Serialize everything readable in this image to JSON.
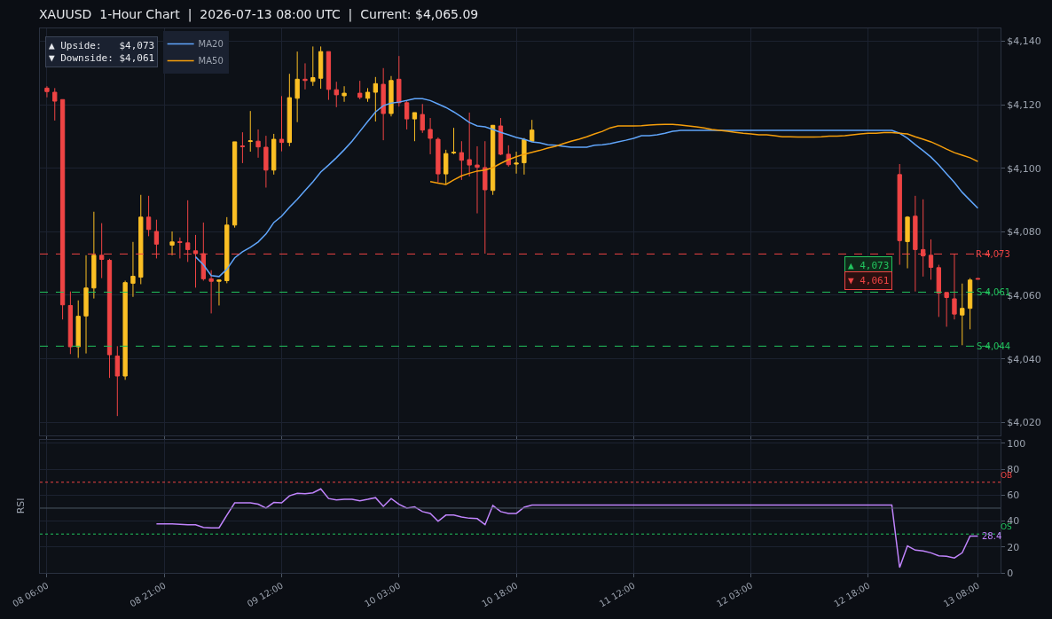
{
  "chart_data": [
    {
      "type": "candlestick",
      "title": "XAUUSD  1-Hour Chart  |  2026-07-13 08:00 UTC  |  Current: $4,065.09",
      "categories": [
        null,
        null,
        null,
        null,
        null,
        null,
        null,
        null,
        null,
        null,
        null,
        null,
        null,
        null,
        null,
        null,
        null,
        null,
        null,
        null,
        null,
        null,
        null,
        null,
        null,
        null,
        null,
        null,
        null,
        null,
        null,
        null,
        null,
        null,
        null,
        null,
        null,
        null,
        null,
        null,
        null,
        null,
        null,
        null,
        null,
        null,
        null,
        null,
        null,
        null,
        null,
        null,
        null,
        null,
        null,
        null,
        null,
        null,
        null,
        null,
        null,
        null,
        null,
        null,
        null,
        null,
        null,
        null,
        null,
        null,
        null,
        null,
        null,
        null,
        null,
        null,
        null,
        null,
        null,
        null,
        null,
        null,
        null,
        null,
        null,
        null,
        null,
        null,
        null,
        null,
        null,
        null,
        null,
        null,
        null,
        null,
        null,
        null,
        null,
        null,
        null,
        null,
        null,
        null,
        null,
        null,
        null,
        null,
        null,
        null,
        null,
        null,
        null,
        null,
        null,
        null,
        null,
        null,
        null,
        null
      ],
      "ohlc": [
        [
          4125.2,
          4125.8,
          4122.3,
          4124.1
        ],
        [
          4123.9,
          4125.2,
          4115.0,
          4121.1
        ],
        [
          4121.6,
          4121.6,
          4052.4,
          4057.0
        ],
        [
          4056.8,
          4061.2,
          4041.5,
          4043.8
        ],
        [
          4043.8,
          4058.4,
          4040.3,
          4053.4
        ],
        [
          4053.5,
          4072.6,
          4041.7,
          4062.3
        ],
        [
          4062.3,
          4086.3,
          4059.0,
          4072.6
        ],
        [
          4072.6,
          4082.7,
          4065.4,
          4071.3
        ],
        [
          4071.0,
          4071.5,
          4034.0,
          4041.3
        ],
        [
          4040.9,
          4044.0,
          4022.0,
          4034.6
        ],
        [
          4034.6,
          4064.6,
          4033.4,
          4064.0
        ],
        [
          4063.8,
          4076.8,
          4059.5,
          4066.0
        ],
        [
          4065.7,
          4091.6,
          4063.5,
          4084.6
        ],
        [
          4084.6,
          4091.3,
          4078.6,
          4080.7
        ],
        [
          4080.1,
          4083.8,
          4071.6,
          4076.1
        ],
        null,
        [
          4075.8,
          4080.1,
          4072.6,
          4076.8
        ],
        [
          4076.9,
          4078.2,
          4071.6,
          4076.6
        ],
        [
          4076.5,
          4089.9,
          4070.5,
          4074.4
        ],
        [
          4074.0,
          4079.0,
          4062.4,
          4073.1
        ],
        [
          4073.1,
          4082.9,
          4064.6,
          4065.2
        ],
        [
          4065.2,
          4067.9,
          4054.3,
          4064.4
        ],
        [
          4064.4,
          4065.0,
          4056.8,
          4064.8
        ],
        [
          4064.6,
          4084.6,
          4063.8,
          4082.1
        ],
        [
          4082.1,
          4108.3,
          4081.3,
          4108.3
        ],
        [
          4107.0,
          4111.3,
          4101.6,
          4106.8
        ],
        [
          4108.4,
          4118.0,
          4105.2,
          4108.6
        ],
        [
          4108.5,
          4112.2,
          4103.3,
          4106.7
        ],
        [
          4106.6,
          4110.2,
          4093.9,
          4099.4
        ],
        [
          4099.4,
          4110.8,
          4098.0,
          4109.1
        ],
        [
          4109.1,
          4122.7,
          4105.3,
          4108.1
        ],
        [
          4108.1,
          4129.7,
          4106.9,
          4122.2
        ],
        [
          4122.0,
          4136.7,
          4114.5,
          4128.0
        ],
        [
          4128.0,
          4133.0,
          4124.8,
          4127.6
        ],
        [
          4127.3,
          4138.3,
          4125.9,
          4128.5
        ],
        [
          4128.3,
          4138.3,
          4125.0,
          4136.7
        ],
        [
          4136.7,
          4136.7,
          4121.5,
          4124.8
        ],
        [
          4124.7,
          4127.2,
          4119.2,
          4123.1
        ],
        [
          4122.8,
          4125.8,
          4120.9,
          4123.6
        ],
        null,
        [
          4123.6,
          4127.5,
          4121.7,
          4122.3
        ],
        [
          4122.0,
          4125.2,
          4120.9,
          4123.9
        ],
        [
          4123.9,
          4128.7,
          4114.7,
          4126.6
        ],
        [
          4126.4,
          4131.5,
          4108.8,
          4117.2
        ],
        [
          4117.2,
          4129.0,
          4116.3,
          4127.6
        ],
        [
          4128.0,
          4135.3,
          4119.4,
          4120.6
        ],
        [
          4120.6,
          4121.3,
          4112.2,
          4115.5
        ],
        [
          4115.5,
          4117.5,
          4108.5,
          4117.5
        ],
        [
          4116.9,
          4120.2,
          4111.1,
          4112.0
        ],
        [
          4112.2,
          4115.8,
          4104.4,
          4109.4
        ],
        [
          4109.1,
          4109.7,
          4095.5,
          4098.2
        ],
        [
          4098.2,
          4105.8,
          4094.8,
          4104.6
        ],
        [
          4104.8,
          4112.7,
          4104.4,
          4105.0
        ],
        [
          4104.9,
          4108.5,
          4096.3,
          4102.5
        ],
        [
          4102.7,
          4117.5,
          4097.4,
          4101.0
        ],
        [
          4101.0,
          4106.9,
          4085.8,
          4100.3
        ],
        [
          4100.2,
          4108.5,
          4073.1,
          4093.2
        ],
        [
          4093.0,
          4113.6,
          4091.6,
          4113.5
        ],
        [
          4113.3,
          4115.8,
          4104.1,
          4104.4
        ],
        [
          4104.4,
          4107.2,
          4100.5,
          4101.1
        ],
        [
          4101.3,
          4105.2,
          4098.3,
          4101.6
        ],
        [
          4101.7,
          4109.5,
          4098.0,
          4109.0
        ],
        [
          4108.5,
          4115.2,
          4108.5,
          4112.0
        ],
        null,
        null,
        null,
        null,
        null,
        null,
        null,
        null,
        null,
        null,
        null,
        null,
        null,
        null,
        null,
        null,
        null,
        null,
        null,
        null,
        null,
        null,
        null,
        null,
        null,
        null,
        null,
        null,
        null,
        null,
        null,
        null,
        null,
        null,
        null,
        null,
        null,
        null,
        null,
        null,
        null,
        null,
        null,
        null,
        null,
        null,
        [
          4098.0,
          4101.3,
          4069.6,
          4077.2
        ],
        [
          4076.9,
          4084.9,
          4068.5,
          4084.6
        ],
        [
          4084.9,
          4091.3,
          4061.2,
          4074.4
        ],
        [
          4074.4,
          4090.2,
          4065.9,
          4072.4
        ],
        [
          4072.6,
          4077.6,
          4064.9,
          4068.8
        ],
        [
          4068.7,
          4069.6,
          4053.2,
          4060.7
        ],
        [
          4060.9,
          4060.9,
          4050.1,
          4059.3
        ],
        [
          4058.9,
          4073.1,
          4052.4,
          4054.1
        ],
        [
          4053.8,
          4063.7,
          4044.3,
          4055.9
        ],
        [
          4055.9,
          4065.4,
          4049.3,
          4064.8
        ],
        [
          4065.3,
          4065.4,
          4065.0,
          4065.1
        ]
      ],
      "colors": [
        "#ef4444",
        "#ef4444",
        "#ef4444",
        "#ef4444",
        "#fbbf24",
        "#fbbf24",
        "#fbbf24",
        "#ef4444",
        "#ef4444",
        "#ef4444",
        "#fbbf24",
        "#fbbf24",
        "#fbbf24",
        "#ef4444",
        "#ef4444",
        null,
        "#fbbf24",
        "#ef4444",
        "#ef4444",
        "#ef4444",
        "#ef4444",
        "#ef4444",
        "#fbbf24",
        "#fbbf24",
        "#fbbf24",
        "#ef4444",
        "#fbbf24",
        "#ef4444",
        "#ef4444",
        "#fbbf24",
        "#ef4444",
        "#fbbf24",
        "#fbbf24",
        "#ef4444",
        "#fbbf24",
        "#fbbf24",
        "#ef4444",
        "#ef4444",
        "#fbbf24",
        null,
        "#ef4444",
        "#fbbf24",
        "#fbbf24",
        "#ef4444",
        "#fbbf24",
        "#ef4444",
        "#ef4444",
        "#fbbf24",
        "#ef4444",
        "#ef4444",
        "#ef4444",
        "#fbbf24",
        "#fbbf24",
        "#ef4444",
        "#ef4444",
        "#ef4444",
        "#ef4444",
        "#fbbf24",
        "#ef4444",
        "#ef4444",
        "#fbbf24",
        "#fbbf24",
        "#fbbf24",
        null,
        null,
        null,
        null,
        null,
        null,
        null,
        null,
        null,
        null,
        null,
        null,
        null,
        null,
        null,
        null,
        null,
        null,
        null,
        null,
        null,
        null,
        null,
        null,
        null,
        null,
        null,
        null,
        null,
        null,
        null,
        null,
        null,
        null,
        null,
        null,
        null,
        null,
        null,
        null,
        null,
        null,
        null,
        null,
        null,
        null,
        "#ef4444",
        "#fbbf24",
        "#ef4444",
        "#ef4444",
        "#ef4444",
        "#ef4444",
        "#ef4444",
        "#ef4444",
        "#fbbf24",
        "#fbbf24",
        "#ef4444"
      ],
      "series": [
        {
          "type": "line",
          "name": "MA20",
          "color": "#60a5fa",
          "values": [
            null,
            null,
            null,
            null,
            null,
            null,
            null,
            null,
            null,
            null,
            null,
            null,
            null,
            null,
            null,
            null,
            null,
            null,
            null,
            4072.1,
            4069.6,
            4066.2,
            4065.9,
            4068.2,
            4071.8,
            4073.7,
            4075.1,
            4076.8,
            4079.3,
            4082.9,
            4084.9,
            4087.7,
            4090.2,
            4093.0,
            4095.7,
            4098.8,
            4101.0,
            4103.3,
            4105.8,
            4108.5,
            4111.6,
            4114.7,
            4117.7,
            4119.7,
            4120.5,
            4120.8,
            4121.3,
            4121.9,
            4121.9,
            4121.3,
            4120.2,
            4119.1,
            4117.7,
            4116.1,
            4114.4,
            4113.3,
            4113.0,
            4112.2,
            4111.3,
            4110.5,
            4109.7,
            4109.1,
            4108.3,
            4108.0,
            4107.4,
            4107.2,
            4106.9,
            4106.6,
            4106.6,
            4106.6,
            4107.2,
            4107.4,
            4107.7,
            4108.3,
            4108.8,
            4109.4,
            4110.2,
            4110.2,
            4110.5,
            4111.0,
            4111.6,
            4111.9,
            4111.9,
            4111.9,
            4111.9,
            4111.9,
            4111.9,
            4111.9,
            4111.9,
            4111.9,
            4111.9,
            4111.9,
            4111.9,
            4111.9,
            4111.9,
            4111.9,
            4111.9,
            4111.9,
            4111.9,
            4111.9,
            4111.9,
            4111.9,
            4111.9,
            4111.9,
            4111.9,
            4111.9,
            4111.9,
            4111.9,
            4111.9,
            4111.0,
            4109.4,
            4107.4,
            4105.5,
            4103.5,
            4101.0,
            4098.2,
            4095.5,
            4092.4,
            4089.9,
            4087.4
          ]
        },
        {
          "type": "line",
          "name": "MA50",
          "color": "#f59e0b",
          "values": [
            null,
            null,
            null,
            null,
            null,
            null,
            null,
            null,
            null,
            null,
            null,
            null,
            null,
            null,
            null,
            null,
            null,
            null,
            null,
            null,
            null,
            null,
            null,
            null,
            null,
            null,
            null,
            null,
            null,
            null,
            null,
            null,
            null,
            null,
            null,
            null,
            null,
            null,
            null,
            null,
            null,
            null,
            null,
            null,
            null,
            null,
            null,
            null,
            null,
            4095.8,
            4095.3,
            4094.9,
            4096.3,
            4097.6,
            4098.4,
            4099.1,
            4099.4,
            4100.2,
            4101.5,
            4102.7,
            4103.6,
            4104.4,
            4105.0,
            4105.6,
            4106.3,
            4106.9,
            4107.7,
            4108.5,
            4109.1,
            4109.9,
            4110.8,
            4111.6,
            4112.7,
            4113.3,
            4113.3,
            4113.3,
            4113.4,
            4113.6,
            4113.7,
            4113.8,
            4113.8,
            4113.6,
            4113.3,
            4113.0,
            4112.7,
            4112.2,
            4111.9,
            4111.6,
            4111.3,
            4111.0,
            4110.8,
            4110.5,
            4110.5,
            4110.2,
            4109.9,
            4109.9,
            4109.8,
            4109.8,
            4109.8,
            4109.9,
            4110.1,
            4110.1,
            4110.2,
            4110.5,
            4110.8,
            4111.0,
            4111.0,
            4111.2,
            4111.2,
            4111.0,
            4110.8,
            4109.9,
            4109.1,
            4108.3,
            4107.2,
            4106.0,
            4104.9,
            4104.1,
            4103.3,
            4102.1
          ]
        }
      ],
      "ylim": [
        4016,
        4144
      ],
      "yticks": [
        {
          "value": 4020,
          "label": "$4,020"
        },
        {
          "value": 4040,
          "label": "$4,040"
        },
        {
          "value": 4060,
          "label": "$4,060"
        },
        {
          "value": 4080,
          "label": "$4,080"
        },
        {
          "value": 4100,
          "label": "$4,100"
        },
        {
          "value": 4120,
          "label": "$4,120"
        },
        {
          "value": 4140,
          "label": "$4,140"
        }
      ],
      "ref_lines": [
        {
          "axis": "y",
          "value": 4073,
          "label": "R 4,073",
          "color": "#ef4444",
          "line_style": "dashed"
        },
        {
          "axis": "y",
          "value": 4061,
          "label": "S 4,061",
          "color": "#22c55e",
          "line_style": "dashed"
        },
        {
          "axis": "y",
          "value": 4044,
          "label": "S 4,044",
          "color": "#22c55e",
          "line_style": "dashed"
        }
      ],
      "annotations": [
        "▲ Upside:   $4,073\n▼ Downside: $4,061",
        "▲ 4,073",
        "▼ 4,061"
      ],
      "legend": "top left",
      "grid": true,
      "tick_labels": "y"
    },
    {
      "type": "line",
      "ylabel": "RSI",
      "categories": [
        "08 06:00",
        null,
        null,
        null,
        null,
        null,
        null,
        null,
        null,
        null,
        null,
        null,
        null,
        null,
        null,
        "08 21:00",
        null,
        null,
        null,
        null,
        null,
        null,
        null,
        null,
        null,
        null,
        null,
        null,
        null,
        null,
        "09 12:00",
        null,
        null,
        null,
        null,
        null,
        null,
        null,
        null,
        null,
        null,
        null,
        null,
        null,
        null,
        "10 03:00",
        null,
        null,
        null,
        null,
        null,
        null,
        null,
        null,
        null,
        null,
        null,
        null,
        null,
        null,
        "10 18:00",
        null,
        null,
        null,
        null,
        null,
        null,
        null,
        null,
        null,
        null,
        null,
        null,
        null,
        null,
        "11 12:00",
        null,
        null,
        null,
        null,
        null,
        null,
        null,
        null,
        null,
        null,
        null,
        null,
        null,
        null,
        "12 03:00",
        null,
        null,
        null,
        null,
        null,
        null,
        null,
        null,
        null,
        null,
        null,
        null,
        null,
        null,
        "12 18:00",
        null,
        null,
        null,
        null,
        null,
        null,
        null,
        null,
        null,
        null,
        null,
        null,
        null,
        "13 08:00"
      ],
      "series": [
        {
          "color": "#c084fc",
          "values": [
            null,
            null,
            null,
            null,
            null,
            null,
            null,
            null,
            null,
            null,
            null,
            null,
            null,
            null,
            37.8,
            37.8,
            37.8,
            37.5,
            37.2,
            37.2,
            35.1,
            34.8,
            34.8,
            44.6,
            54.1,
            54.1,
            54.1,
            53.0,
            50.0,
            54.4,
            54.1,
            59.5,
            61.5,
            61.1,
            61.8,
            64.9,
            57.4,
            56.4,
            56.8,
            56.8,
            55.7,
            56.8,
            58.1,
            51.4,
            57.4,
            53.0,
            50.0,
            51.0,
            47.3,
            45.9,
            39.9,
            44.6,
            44.6,
            43.2,
            42.2,
            41.9,
            37.2,
            52.0,
            47.3,
            45.9,
            45.9,
            50.7,
            52.4,
            52.4,
            52.4,
            52.4,
            52.4,
            52.4,
            52.4,
            52.4,
            52.4,
            52.4,
            52.4,
            52.4,
            52.4,
            52.4,
            52.4,
            52.4,
            52.4,
            52.4,
            52.4,
            52.4,
            52.4,
            52.4,
            52.4,
            52.4,
            52.4,
            52.4,
            52.4,
            52.4,
            52.4,
            52.4,
            52.4,
            52.4,
            52.4,
            52.4,
            52.4,
            52.4,
            52.4,
            52.4,
            52.4,
            52.4,
            52.4,
            52.4,
            52.4,
            52.4,
            52.4,
            52.4,
            52.4,
            4.1,
            20.9,
            17.6,
            16.9,
            15.5,
            13.2,
            12.8,
            11.5,
            15.5,
            28.4,
            28.4
          ]
        }
      ],
      "ylim": [
        0,
        103
      ],
      "yticks": [
        0,
        20,
        40,
        60,
        80,
        100
      ],
      "ref_lines": [
        {
          "axis": "y",
          "value": 70,
          "label": "OB",
          "color": "#ef4444",
          "line_style": "dotted"
        },
        {
          "axis": "y",
          "value": 30,
          "label": "OS",
          "color": "#22c55e",
          "line_style": "dotted"
        },
        {
          "axis": "y",
          "value": 50,
          "label": null,
          "color": "#4b5563",
          "line_style": "solid"
        }
      ],
      "annotations": [
        {
          "text": "28.4",
          "x": "13 08:00",
          "y": 28.4
        }
      ],
      "grid": true
    }
  ]
}
